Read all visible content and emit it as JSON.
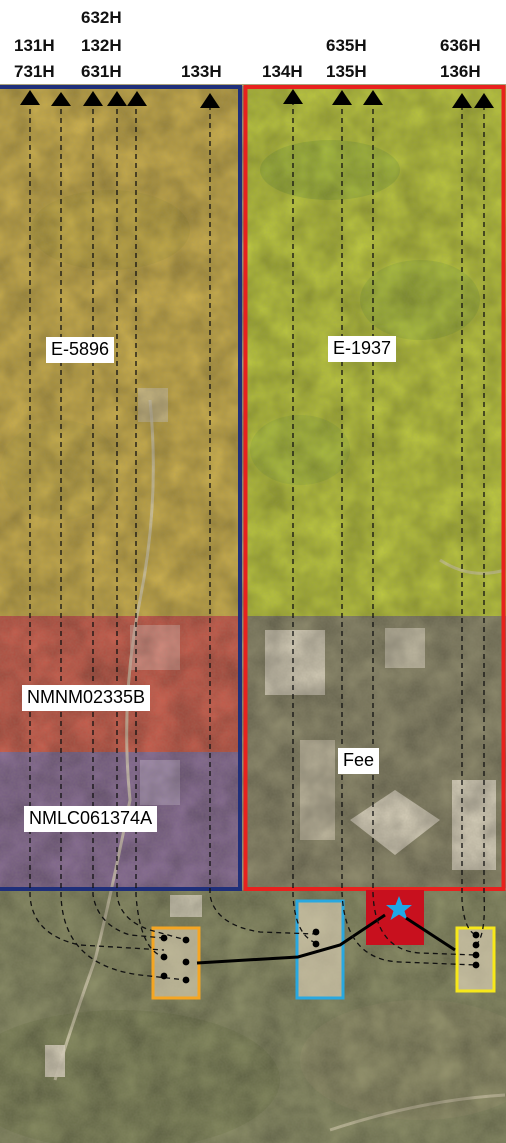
{
  "well_labels": {
    "col1_top": "131H",
    "col1_bottom": "731H",
    "col2_top": "632H",
    "col2_mid": "132H",
    "col2_bottom": "631H",
    "col3": "133H",
    "col4": "134H",
    "col5_top": "635H",
    "col5_bottom": "135H",
    "col6_top": "636H",
    "col6_bottom": "136H"
  },
  "tracts": {
    "west_state": "E-5896",
    "east_state": "E-1937",
    "federal_1": "NMNM02335B",
    "federal_2": "NMLC061374A",
    "fee": "Fee"
  },
  "colors": {
    "west_unit_border": "#1f2f7a",
    "east_unit_border": "#e8211e",
    "west_state_tint": "#d9b94a",
    "east_state_tint": "#c8d63a",
    "federal_1_tint": "#d9584a",
    "federal_2_tint": "#8a6aa0",
    "pad_orange": "#f5a623",
    "pad_blue": "#29a8e0",
    "pad_yellow": "#f7e81a",
    "facility_red": "#c8101e",
    "facility_star": "#1fa8e8"
  },
  "icons": {
    "well_end": "triangle-up-icon",
    "facility": "star-icon",
    "wellhead": "dot-icon"
  }
}
